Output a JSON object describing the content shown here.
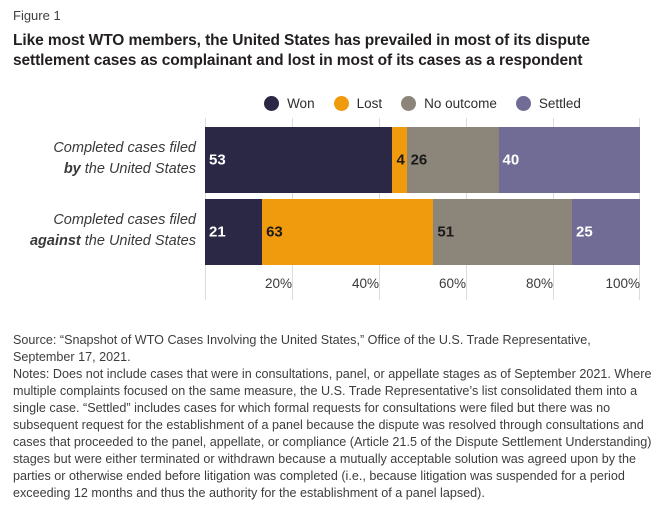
{
  "figure_label": "Figure 1",
  "title": "Like most WTO members, the United States has prevailed in most of its dispute settlement cases as complainant and lost in most of its cases as a respondent",
  "chart_data": {
    "type": "bar",
    "subtype": "horizontal-stacked-100pct",
    "legend_position": "top",
    "grid": true,
    "x_axis": {
      "ticks": [
        "20%",
        "40%",
        "60%",
        "80%",
        "100%"
      ],
      "range_pct": [
        0,
        100
      ]
    },
    "series": [
      {
        "name": "Won",
        "color": "#2B2845",
        "label_color": "#FFFFFF"
      },
      {
        "name": "Lost",
        "color": "#F09A0D",
        "label_color": "#1A1A1A"
      },
      {
        "name": "No outcome",
        "color": "#8C8579",
        "label_color": "#1A1A1A"
      },
      {
        "name": "Settled",
        "color": "#716C96",
        "label_color": "#FFFFFF"
      }
    ],
    "rows": [
      {
        "label_line1": "Completed cases filed",
        "label_emph": "by",
        "label_rest": " the United States",
        "values": [
          53,
          4,
          26,
          40
        ]
      },
      {
        "label_line1": "Completed cases filed",
        "label_emph": "against",
        "label_rest": " the United States",
        "values": [
          21,
          63,
          51,
          25
        ]
      }
    ]
  },
  "source": "Source: “Snapshot of WTO Cases Involving the United States,” Office of the U.S. Trade Representative, September 17, 2021.",
  "notes": "Notes: Does not include cases that were in consultations, panel, or appellate stages as of September 2021. Where multiple complaints focused on the same measure, the U.S. Trade Representative’s list consolidated them into a single case. “Settled” includes cases for which formal requests for consultations were filed but there was no subsequent request for the establishment of a panel because the dispute was resolved through consultations and cases that proceeded to the panel, appellate, or compliance (Article 21.5 of the Dispute Settlement Understanding) stages but were either terminated or withdrawn because a mutually acceptable solution was agreed upon by the parties or otherwise ended before litigation was completed (i.e., because litigation was suspended for a period exceeding 12 months and thus the authority for the establishment of a panel lapsed)."
}
